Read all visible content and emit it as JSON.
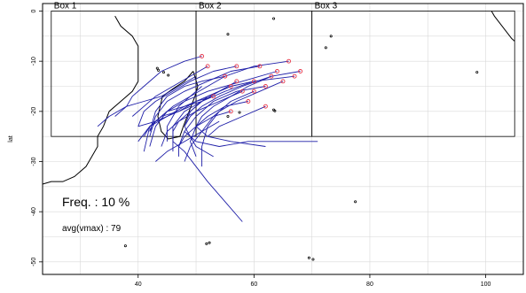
{
  "chart_data": {
    "type": "line",
    "title": "",
    "xlabel": "",
    "ylabel": "lat",
    "xlim": [
      23.5,
      106.5
    ],
    "ylim": [
      -52.5,
      1.5
    ],
    "x_ticks": [
      40,
      60,
      80,
      100
    ],
    "y_ticks": [
      0,
      -10,
      -20,
      -30,
      -40,
      -50
    ],
    "grid": true,
    "boxes": [
      {
        "label": "Box 1",
        "lon": [
          25,
          50
        ],
        "lat": [
          -25,
          0
        ]
      },
      {
        "label": "Box 2",
        "lon": [
          50,
          70
        ],
        "lat": [
          -25,
          0
        ]
      },
      {
        "label": "Box 3",
        "lon": [
          70,
          105
        ],
        "lat": [
          -25,
          0
        ]
      }
    ],
    "freq_text": "Freq. : 10 %",
    "vmax_text": "avg(vmax) : 79",
    "colors": {
      "track": "#1f1fa8",
      "genesis": "#e8384a",
      "coast": "#000000",
      "grid": "#d8d8d8"
    },
    "tracks": [
      [
        [
          51,
          -9
        ],
        [
          48,
          -10
        ],
        [
          44,
          -12
        ],
        [
          41,
          -15
        ],
        [
          39,
          -17
        ],
        [
          38,
          -19
        ],
        [
          37,
          -20
        ],
        [
          36,
          -21
        ]
      ],
      [
        [
          64,
          -12
        ],
        [
          58,
          -14
        ],
        [
          52,
          -16
        ],
        [
          48,
          -18
        ],
        [
          45,
          -20
        ],
        [
          43,
          -23
        ],
        [
          42,
          -27
        ]
      ],
      [
        [
          60,
          -14
        ],
        [
          56,
          -15
        ],
        [
          52,
          -17
        ],
        [
          49,
          -20
        ],
        [
          47,
          -22
        ],
        [
          46,
          -24
        ],
        [
          46,
          -28
        ]
      ],
      [
        [
          57,
          -14
        ],
        [
          54,
          -16
        ],
        [
          51,
          -18
        ],
        [
          49,
          -20
        ],
        [
          48,
          -23
        ],
        [
          50,
          -27
        ],
        [
          53,
          -29
        ]
      ],
      [
        [
          62,
          -15
        ],
        [
          57,
          -16
        ],
        [
          53,
          -18
        ],
        [
          50,
          -21
        ],
        [
          48,
          -24
        ],
        [
          47,
          -27
        ]
      ],
      [
        [
          56,
          -15
        ],
        [
          52,
          -17
        ],
        [
          48,
          -19
        ],
        [
          45,
          -21
        ],
        [
          42,
          -23
        ],
        [
          40,
          -26
        ]
      ],
      [
        [
          67,
          -13
        ],
        [
          60,
          -14
        ],
        [
          55,
          -16
        ],
        [
          51,
          -18
        ],
        [
          48,
          -20
        ],
        [
          46,
          -23
        ],
        [
          46,
          -26
        ]
      ],
      [
        [
          58,
          -16
        ],
        [
          54,
          -18
        ],
        [
          50,
          -20
        ],
        [
          47,
          -22
        ],
        [
          45,
          -24
        ],
        [
          44,
          -27
        ]
      ],
      [
        [
          53,
          -17
        ],
        [
          50,
          -18
        ],
        [
          47,
          -20
        ],
        [
          44,
          -21
        ],
        [
          42,
          -23
        ],
        [
          41,
          -25
        ]
      ],
      [
        [
          62,
          -19
        ],
        [
          58,
          -21
        ],
        [
          54,
          -23
        ],
        [
          52,
          -25
        ],
        [
          56,
          -26
        ],
        [
          62,
          -27
        ]
      ],
      [
        [
          50,
          -13
        ],
        [
          47,
          -15
        ],
        [
          44,
          -17
        ],
        [
          41,
          -18
        ],
        [
          38,
          -19
        ],
        [
          35,
          -21
        ],
        [
          33,
          -23
        ]
      ],
      [
        [
          55,
          -13
        ],
        [
          52,
          -15
        ],
        [
          49,
          -17
        ],
        [
          46,
          -19
        ],
        [
          44,
          -21
        ],
        [
          42,
          -23
        ],
        [
          41,
          -28
        ]
      ],
      [
        [
          54,
          -16
        ],
        [
          51,
          -18
        ],
        [
          48,
          -19
        ],
        [
          45,
          -20
        ],
        [
          43,
          -22
        ],
        [
          42,
          -24
        ]
      ],
      [
        [
          66,
          -10
        ],
        [
          60,
          -11
        ],
        [
          55,
          -13
        ],
        [
          51,
          -14
        ],
        [
          48,
          -15
        ],
        [
          45,
          -17
        ],
        [
          43,
          -20
        ],
        [
          42,
          -24
        ]
      ],
      [
        [
          61,
          -11
        ],
        [
          56,
          -12
        ],
        [
          52,
          -14
        ],
        [
          48,
          -16
        ],
        [
          45,
          -18
        ],
        [
          43,
          -21
        ],
        [
          42,
          -25
        ]
      ],
      [
        [
          57,
          -11
        ],
        [
          53,
          -12
        ],
        [
          49,
          -14
        ],
        [
          46,
          -16
        ],
        [
          43,
          -18
        ],
        [
          41,
          -20
        ],
        [
          40,
          -23
        ]
      ],
      [
        [
          52,
          -11
        ],
        [
          49,
          -13
        ],
        [
          46,
          -15
        ],
        [
          43,
          -17
        ],
        [
          41,
          -19
        ],
        [
          39,
          -21
        ]
      ],
      [
        [
          63,
          -13
        ],
        [
          59,
          -15
        ],
        [
          56,
          -17
        ],
        [
          53,
          -19
        ],
        [
          51,
          -21
        ],
        [
          50,
          -23
        ],
        [
          52,
          -25
        ]
      ],
      [
        [
          68,
          -12
        ],
        [
          63,
          -13
        ],
        [
          58,
          -15
        ],
        [
          54,
          -17
        ],
        [
          51,
          -19
        ],
        [
          49,
          -21
        ],
        [
          48,
          -23
        ]
      ],
      [
        [
          59,
          -18
        ],
        [
          55,
          -19
        ],
        [
          52,
          -21
        ],
        [
          50,
          -23
        ],
        [
          49,
          -26
        ],
        [
          50,
          -29
        ]
      ],
      [
        [
          56,
          -20
        ],
        [
          53,
          -21
        ],
        [
          50,
          -23
        ],
        [
          48,
          -25
        ],
        [
          47,
          -27
        ],
        [
          47,
          -29
        ]
      ],
      [
        [
          51,
          -15
        ],
        [
          49,
          -17
        ],
        [
          47,
          -19
        ],
        [
          46,
          -21
        ],
        [
          45,
          -23
        ],
        [
          45,
          -26
        ]
      ],
      [
        [
          49,
          -19
        ],
        [
          47,
          -20
        ],
        [
          45,
          -21
        ],
        [
          43,
          -22
        ],
        [
          40,
          -23
        ]
      ],
      [
        [
          48,
          -24
        ],
        [
          50,
          -26
        ],
        [
          54,
          -27
        ],
        [
          59,
          -26
        ],
        [
          66,
          -26
        ],
        [
          71,
          -26
        ]
      ],
      [
        [
          46,
          -26
        ],
        [
          48,
          -28
        ],
        [
          50,
          -31
        ],
        [
          52,
          -34
        ],
        [
          55,
          -38
        ],
        [
          58,
          -42
        ]
      ],
      [
        [
          54,
          -22
        ],
        [
          51,
          -24
        ],
        [
          48,
          -26
        ],
        [
          45,
          -28
        ],
        [
          43,
          -30
        ]
      ],
      [
        [
          60,
          -16
        ],
        [
          56,
          -18
        ],
        [
          53,
          -21
        ],
        [
          51,
          -24
        ],
        [
          49,
          -27
        ],
        [
          48,
          -30
        ]
      ],
      [
        [
          65,
          -14
        ],
        [
          61,
          -16
        ],
        [
          57,
          -18
        ],
        [
          54,
          -20
        ],
        [
          52,
          -23
        ],
        [
          51,
          -27
        ],
        [
          51,
          -31
        ]
      ]
    ],
    "genesis_points": [
      [
        51,
        -9
      ],
      [
        64,
        -12
      ],
      [
        60,
        -14
      ],
      [
        57,
        -14
      ],
      [
        62,
        -15
      ],
      [
        56,
        -15
      ],
      [
        67,
        -13
      ],
      [
        58,
        -16
      ],
      [
        53,
        -17
      ],
      [
        62,
        -19
      ],
      [
        55,
        -13
      ],
      [
        66,
        -10
      ],
      [
        61,
        -11
      ],
      [
        63,
        -13
      ],
      [
        68,
        -12
      ],
      [
        59,
        -18
      ],
      [
        56,
        -20
      ],
      [
        60,
        -16
      ],
      [
        65,
        -14
      ],
      [
        57,
        -11
      ],
      [
        52,
        -11
      ]
    ],
    "coastlines": [
      [
        [
          36,
          -1
        ],
        [
          37,
          -3
        ],
        [
          39,
          -5
        ],
        [
          40,
          -7
        ],
        [
          40,
          -9
        ],
        [
          40,
          -11
        ],
        [
          40,
          -14
        ],
        [
          39,
          -16
        ],
        [
          37,
          -18
        ],
        [
          35,
          -20
        ],
        [
          34,
          -23
        ],
        [
          33,
          -25
        ],
        [
          33,
          -27
        ],
        [
          32,
          -29
        ],
        [
          31,
          -31
        ],
        [
          29,
          -33
        ],
        [
          27,
          -34
        ],
        [
          25,
          -34
        ],
        [
          23.5,
          -34.5
        ]
      ],
      [
        [
          49.5,
          -12
        ],
        [
          50.3,
          -15
        ],
        [
          49.8,
          -17
        ],
        [
          48.8,
          -20
        ],
        [
          47.8,
          -23
        ],
        [
          47.2,
          -25
        ],
        [
          45.2,
          -25.5
        ],
        [
          44,
          -24
        ],
        [
          43.4,
          -21
        ],
        [
          44.2,
          -17
        ],
        [
          46,
          -15.5
        ],
        [
          48,
          -14
        ],
        [
          49.5,
          -12
        ]
      ],
      [
        [
          101,
          0
        ],
        [
          101.5,
          -1
        ],
        [
          102.5,
          -2.5
        ],
        [
          103.5,
          -4
        ],
        [
          104.5,
          -5.5
        ],
        [
          105,
          -6
        ]
      ]
    ],
    "islands": [
      [
        55.5,
        -21
      ],
      [
        57.5,
        -20.2
      ],
      [
        63.4,
        -19.7
      ],
      [
        55.5,
        -4.6
      ],
      [
        72.4,
        -7.3
      ],
      [
        73.3,
        -5
      ],
      [
        43.5,
        -11.8
      ],
      [
        44.4,
        -12.2
      ],
      [
        45.2,
        -12.8
      ],
      [
        77.5,
        -38
      ],
      [
        69.5,
        -49.2
      ],
      [
        70.2,
        -49.5
      ],
      [
        37.8,
        -46.8
      ],
      [
        51.8,
        -46.4
      ],
      [
        52.3,
        -46.2
      ],
      [
        63.6,
        -19.9
      ],
      [
        63.4,
        -1.5
      ],
      [
        43.3,
        -11.4
      ],
      [
        98.5,
        -12.2
      ]
    ]
  }
}
